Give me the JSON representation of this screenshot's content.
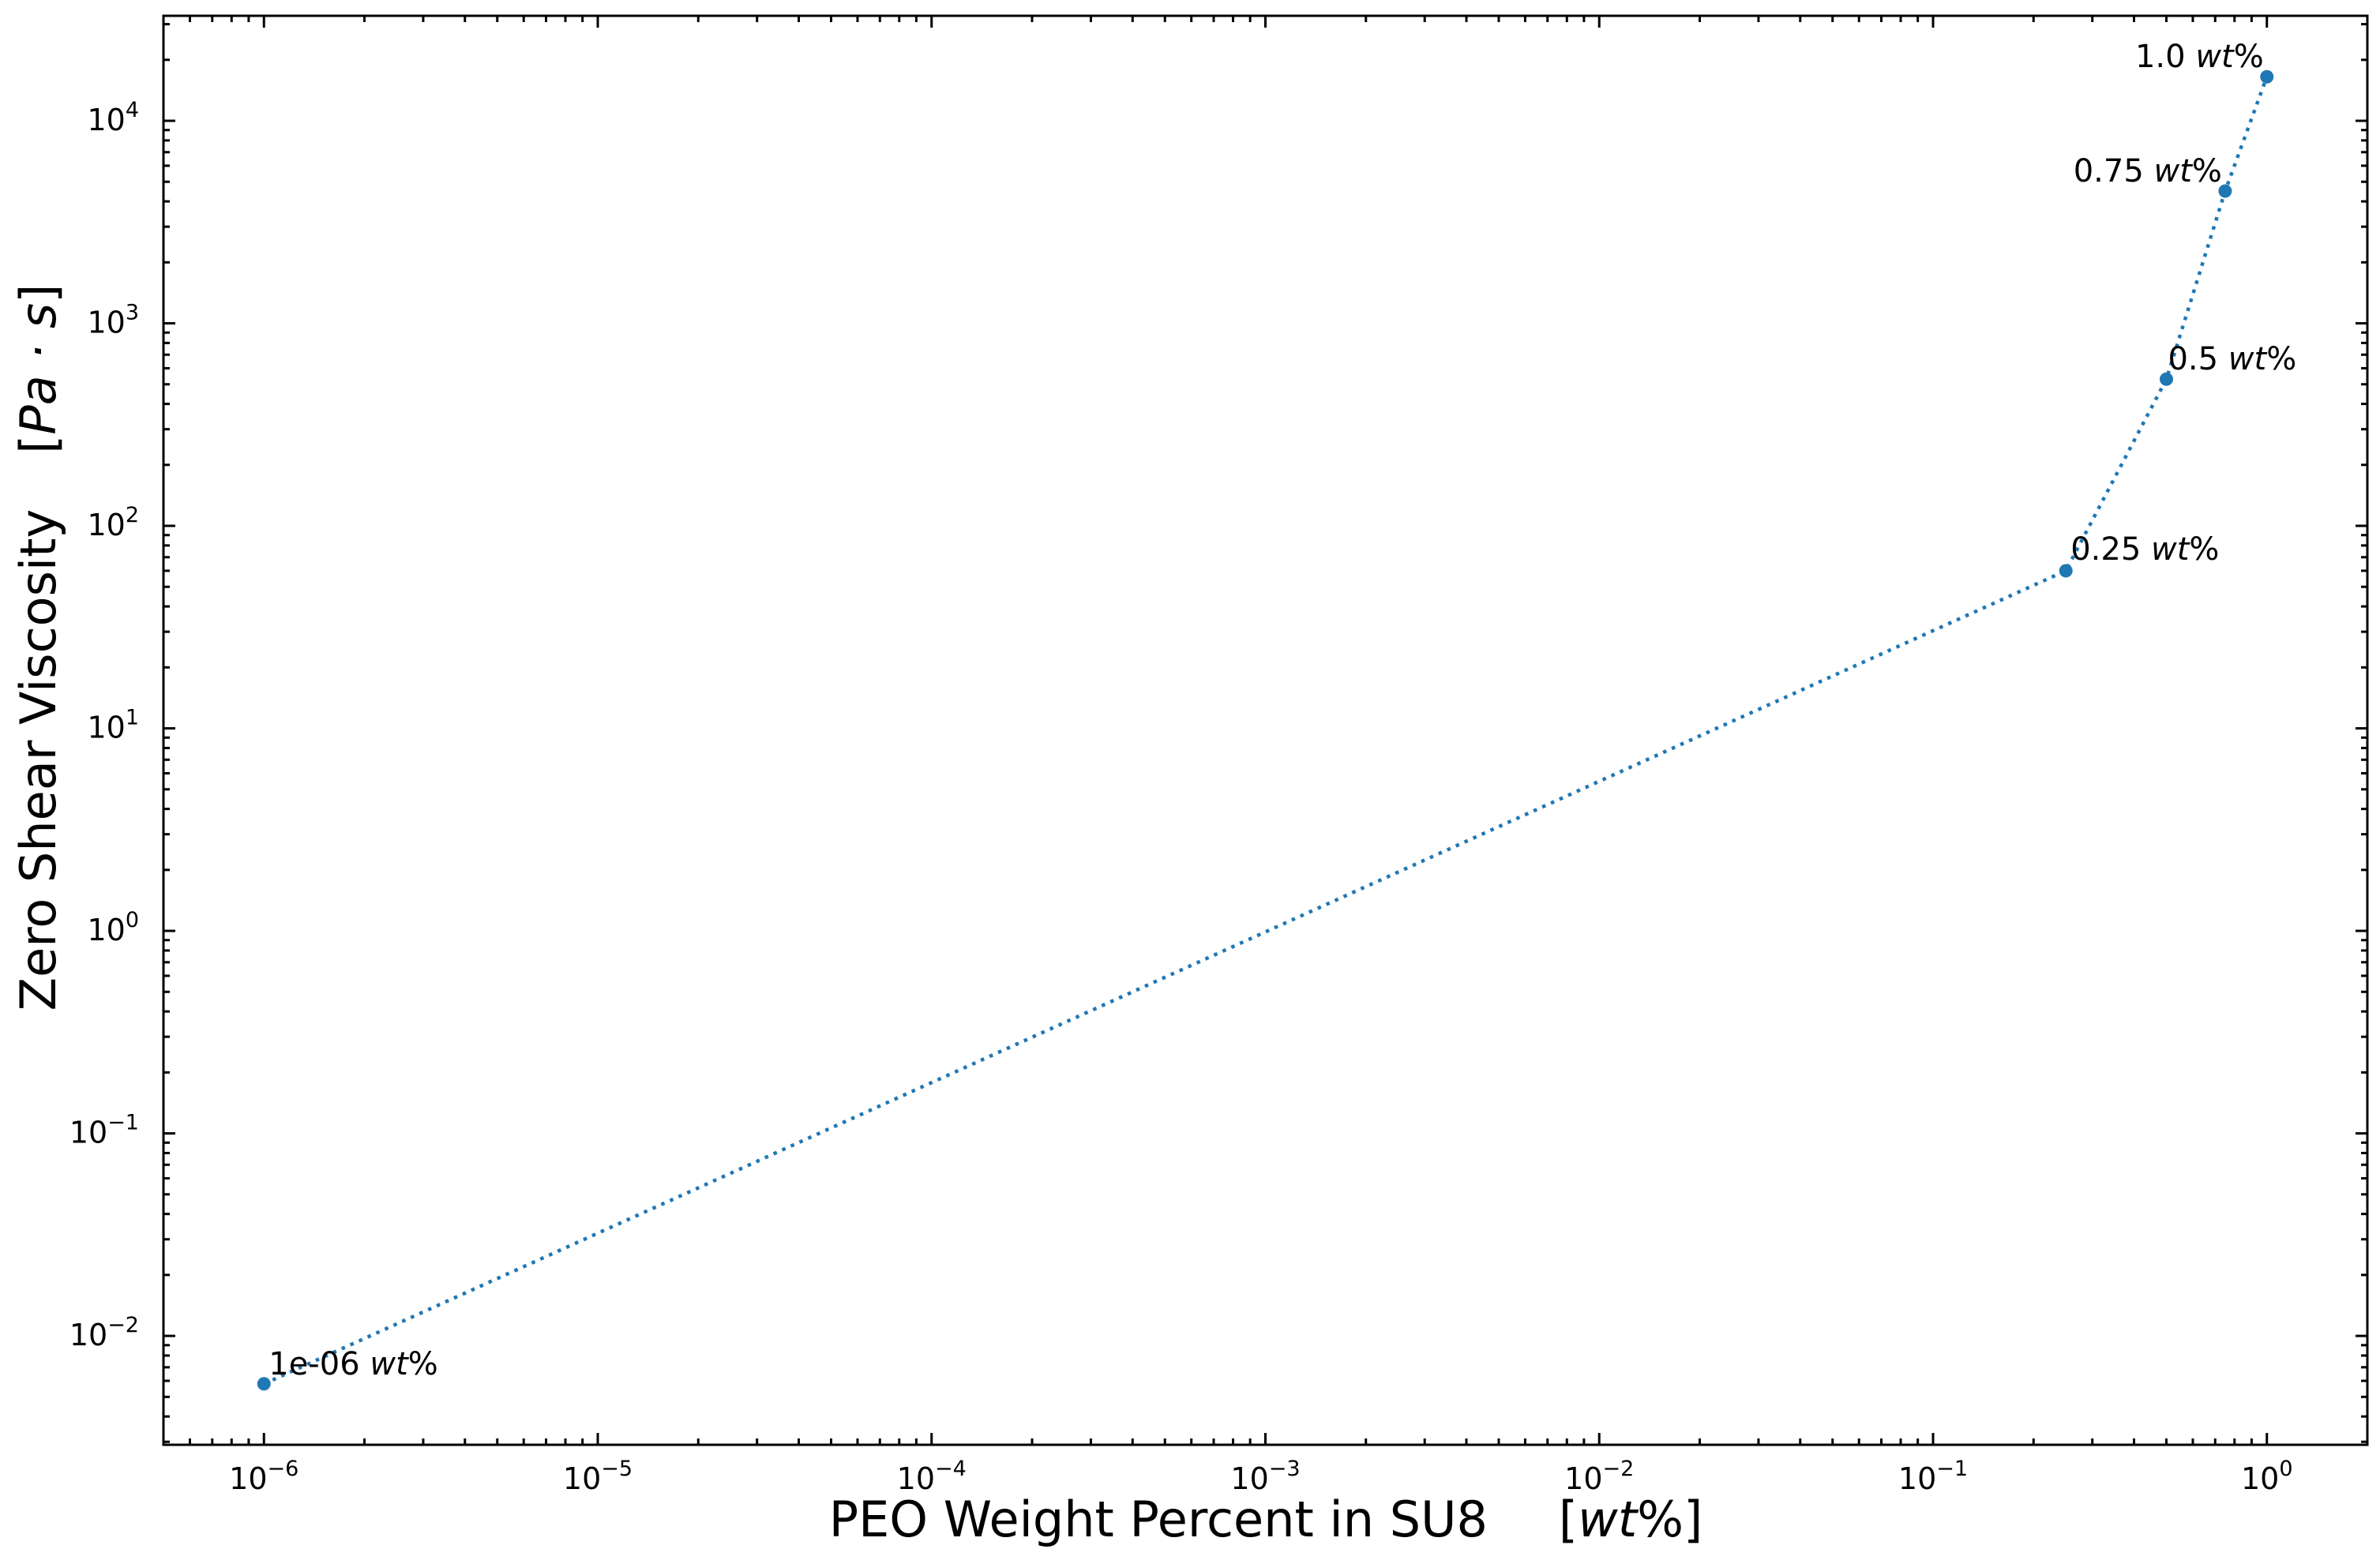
{
  "chart_data": {
    "type": "line",
    "marker": "circle",
    "line_style": "dotted",
    "xscale": "log",
    "yscale": "log",
    "xlim": [
      5e-07,
      2
    ],
    "ylim": [
      0.0029,
      33000
    ],
    "grid": false,
    "legend": false,
    "color": "#1f77b4",
    "x": [
      1e-06,
      0.25,
      0.5,
      0.75,
      1.0
    ],
    "y": [
      0.0058,
      60,
      530,
      4500,
      16500
    ],
    "point_labels": [
      {
        "num": "1e-06",
        "unit": "wt",
        "pct": "%"
      },
      {
        "num": "0.25",
        "unit": "wt",
        "pct": "%"
      },
      {
        "num": "0.5",
        "unit": "wt",
        "pct": "%"
      },
      {
        "num": "0.75",
        "unit": "wt",
        "pct": "%"
      },
      {
        "num": "1.0",
        "unit": "wt",
        "pct": "%"
      }
    ],
    "xticks": [
      {
        "value": 1e-06,
        "base": "10",
        "exp": "−6"
      },
      {
        "value": 1e-05,
        "base": "10",
        "exp": "−5"
      },
      {
        "value": 0.0001,
        "base": "10",
        "exp": "−4"
      },
      {
        "value": 0.001,
        "base": "10",
        "exp": "−3"
      },
      {
        "value": 0.01,
        "base": "10",
        "exp": "−2"
      },
      {
        "value": 0.1,
        "base": "10",
        "exp": "−1"
      },
      {
        "value": 1,
        "base": "10",
        "exp": "0"
      }
    ],
    "yticks": [
      {
        "value": 0.01,
        "base": "10",
        "exp": "−2"
      },
      {
        "value": 0.1,
        "base": "10",
        "exp": "−1"
      },
      {
        "value": 1,
        "base": "10",
        "exp": "0"
      },
      {
        "value": 10,
        "base": "10",
        "exp": "1"
      },
      {
        "value": 100,
        "base": "10",
        "exp": "2"
      },
      {
        "value": 1000,
        "base": "10",
        "exp": "3"
      },
      {
        "value": 10000,
        "base": "10",
        "exp": "4"
      }
    ],
    "xlabel": {
      "text": "PEO Weight Percent in SU8",
      "unit_open": "[",
      "unit": "wt",
      "unit_close": "%]"
    },
    "ylabel": {
      "text": "Zero Shear Viscosity",
      "unit_open": "[",
      "unit": "Pa · s",
      "unit_close": "]"
    }
  }
}
